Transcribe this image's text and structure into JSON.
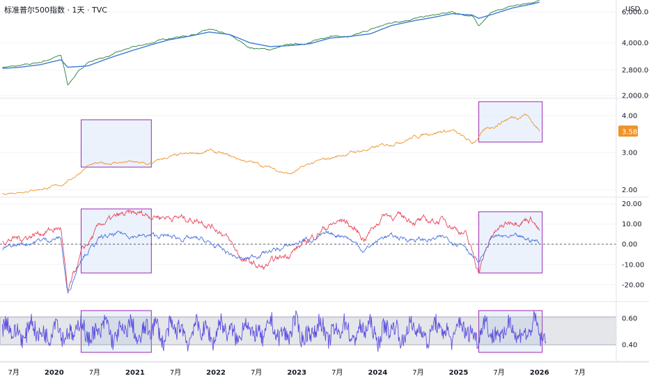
{
  "header": {
    "title": "标准普尔500指数 · 1天 · TVC",
    "currency": "USD"
  },
  "colors": {
    "price": "#2a7a3a",
    "ma": "#3a7bd5",
    "ratio": "#f0932b",
    "red": "#e8455a",
    "blue": "#4a72e0",
    "osc": "#5b4ee0",
    "box_border": "#9c27b0",
    "box_fill": "#e3ecfb",
    "grid": "#f0f3fa"
  },
  "x_axis": {
    "labels": [
      "7月",
      "2020",
      "7月",
      "2021",
      "7月",
      "2022",
      "7月",
      "2023",
      "7月",
      "2024",
      "7月",
      "2025",
      "7月",
      "2026",
      "7月"
    ]
  },
  "chart_data": [
    {
      "type": "line",
      "pane": "price",
      "scale": "log",
      "y_ticks": [
        "2,000.00",
        "2,800.00",
        "4,000.00",
        "6,000.00"
      ],
      "y_tick_values": [
        2000,
        2800,
        4000,
        6000
      ],
      "ylim": [
        1950,
        7000
      ],
      "x": [
        "2019-05",
        "2019-08",
        "2019-11",
        "2020-02",
        "2020-03",
        "2020-06",
        "2020-09",
        "2020-12",
        "2021-03",
        "2021-06",
        "2021-09",
        "2021-12",
        "2022-03",
        "2022-06",
        "2022-09",
        "2022-12",
        "2023-03",
        "2023-06",
        "2023-09",
        "2023-12",
        "2024-03",
        "2024-06",
        "2024-09",
        "2024-12",
        "2025-03",
        "2025-04",
        "2025-06",
        "2025-09",
        "2025-12",
        "2026-01"
      ],
      "series": [
        {
          "values": [
            2900,
            2950,
            3100,
            3380,
            2300,
            3100,
            3350,
            3700,
            3950,
            4250,
            4400,
            4750,
            4400,
            3750,
            3650,
            3900,
            4000,
            4400,
            4300,
            4750,
            5200,
            5450,
            5700,
            5950,
            5650,
            5000,
            6000,
            6450,
            6800,
            6900
          ]
        },
        {
          "values": [
            2850,
            2900,
            3000,
            3200,
            2900,
            2950,
            3250,
            3550,
            3850,
            4150,
            4350,
            4600,
            4450,
            4000,
            3800,
            3850,
            3950,
            4250,
            4350,
            4500,
            5000,
            5300,
            5550,
            5850,
            5750,
            5500,
            5800,
            6300,
            6650,
            6800
          ]
        }
      ]
    },
    {
      "type": "line",
      "pane": "ratio",
      "y_ticks": [
        "2.00",
        "3.00",
        "4.00"
      ],
      "y_tick_values": [
        2,
        3,
        4
      ],
      "ylim": [
        1.82,
        4.45
      ],
      "current_value": "3.58",
      "x": [
        "2019-05",
        "2019-08",
        "2019-11",
        "2020-02",
        "2020-04",
        "2020-06",
        "2020-09",
        "2020-12",
        "2021-03",
        "2021-06",
        "2021-09",
        "2021-12",
        "2022-03",
        "2022-06",
        "2022-09",
        "2022-12",
        "2023-03",
        "2023-06",
        "2023-09",
        "2023-12",
        "2024-03",
        "2024-06",
        "2024-09",
        "2024-12",
        "2025-03",
        "2025-05",
        "2025-08",
        "2025-11",
        "2026-01"
      ],
      "series": [
        {
          "values": [
            1.88,
            1.95,
            2.02,
            2.12,
            2.35,
            2.65,
            2.72,
            2.75,
            2.68,
            2.88,
            2.95,
            3.05,
            2.9,
            2.75,
            2.6,
            2.42,
            2.7,
            2.85,
            3.0,
            3.1,
            3.25,
            3.4,
            3.55,
            3.6,
            3.25,
            3.6,
            3.9,
            4.05,
            3.58
          ]
        }
      ]
    },
    {
      "type": "line",
      "pane": "momentum",
      "y_ticks": [
        "-20.00",
        "-10.00",
        "0.00",
        "10.00",
        "20.00"
      ],
      "y_tick_values": [
        -20,
        -10,
        0,
        10,
        20
      ],
      "ylim": [
        -28,
        23
      ],
      "zero_line": 0,
      "x": [
        "2019-05",
        "2019-08",
        "2019-11",
        "2020-02",
        "2020-03",
        "2020-05",
        "2020-08",
        "2020-11",
        "2021-02",
        "2021-05",
        "2021-08",
        "2021-11",
        "2022-02",
        "2022-05",
        "2022-08",
        "2022-11",
        "2023-02",
        "2023-05",
        "2023-08",
        "2023-11",
        "2024-02",
        "2024-05",
        "2024-08",
        "2024-11",
        "2025-02",
        "2025-04",
        "2025-06",
        "2025-09",
        "2025-12",
        "2026-01"
      ],
      "series": [
        {
          "values": [
            2,
            3,
            6,
            8,
            -25,
            -5,
            10,
            14,
            15,
            14,
            13,
            12,
            6,
            -8,
            -12,
            -6,
            0,
            8,
            12,
            3,
            15,
            13,
            11,
            12,
            5,
            -13,
            5,
            12,
            13,
            6
          ]
        },
        {
          "values": [
            -3,
            0,
            2,
            3,
            -25,
            -6,
            3,
            5,
            4,
            4,
            3,
            2,
            -3,
            -8,
            -4,
            -2,
            2,
            4,
            5,
            -3,
            4,
            3,
            2,
            3,
            0,
            -10,
            4,
            3,
            2,
            1
          ]
        }
      ]
    },
    {
      "type": "line",
      "pane": "oscillator",
      "y_ticks": [
        "0.40",
        "0.60"
      ],
      "y_tick_values": [
        0.4,
        0.6
      ],
      "ylim": [
        0.28,
        0.72
      ],
      "band": [
        0.4,
        0.61
      ],
      "x": [
        "2019-05",
        "2026-01"
      ],
      "series": [
        {
          "values": [
            0.5,
            0.48
          ]
        }
      ]
    }
  ],
  "highlight_boxes": [
    {
      "start": "2020-05",
      "end": "2021-03"
    },
    {
      "start": "2025-04",
      "end": "2026-01"
    }
  ]
}
